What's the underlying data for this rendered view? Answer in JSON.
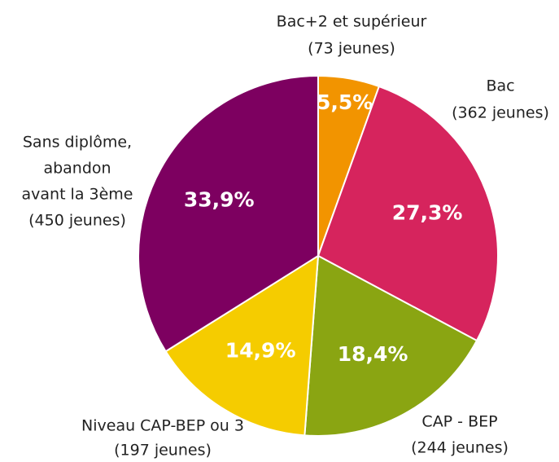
{
  "chart_data": {
    "type": "pie",
    "categories": [
      [
        "Bac+2 et supérieur",
        "(73 jeunes)"
      ],
      [
        "Bac",
        "(362 jeunes)"
      ],
      [
        "CAP - BEP",
        "(244 jeunes)"
      ],
      [
        "Niveau CAP-BEP ou 3",
        "(197 jeunes)"
      ],
      [
        "Sans diplôme,",
        "abandon",
        "avant la 3ème",
        "(450 jeunes)"
      ]
    ],
    "values": [
      5.5,
      27.3,
      18.4,
      14.9,
      33.9
    ],
    "value_labels": [
      "5,5%",
      "27,3%",
      "18,4%",
      "14,9%",
      "33,9%"
    ],
    "colors": [
      "#f29400",
      "#d6245d",
      "#8aa512",
      "#f5cc00",
      "#7d0060"
    ]
  }
}
